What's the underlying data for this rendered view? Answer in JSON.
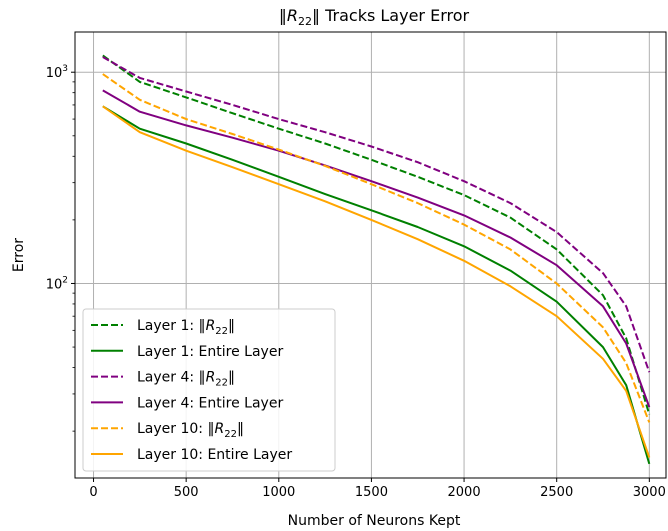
{
  "chart_data": {
    "type": "line",
    "title": "‖R₂₂‖ Tracks Layer Error",
    "xlabel": "Number of Neurons Kept",
    "ylabel": "Error",
    "xlim": [
      -100,
      3090
    ],
    "ylim": [
      12,
      1550
    ],
    "yscale": "log",
    "grid": true,
    "legend_placement": "lower-left",
    "x_ticks": [
      0,
      500,
      1000,
      1500,
      2000,
      2500,
      3000
    ],
    "y_ticks": [
      {
        "value": 100,
        "base": "10",
        "exp": "2"
      },
      {
        "value": 1000,
        "base": "10",
        "exp": "3"
      }
    ],
    "x": [
      50,
      250,
      500,
      750,
      1000,
      1250,
      1500,
      1750,
      2000,
      2250,
      2500,
      2750,
      2875,
      3000
    ],
    "series": [
      {
        "name": "Layer 1:  ‖R₂₂‖",
        "color": "#008000",
        "dash": true,
        "values": [
          1200,
          900,
          760,
          640,
          540,
          460,
          385,
          320,
          262,
          205,
          145,
          88,
          55,
          24
        ]
      },
      {
        "name": "Layer 1:  Entire Layer",
        "color": "#008000",
        "dash": false,
        "values": [
          690,
          540,
          460,
          385,
          320,
          265,
          222,
          185,
          150,
          115,
          82,
          50,
          33,
          14
        ]
      },
      {
        "name": "Layer 4:  ‖R₂₂‖",
        "color": "#800080",
        "dash": true,
        "values": [
          1180,
          940,
          810,
          700,
          600,
          520,
          445,
          375,
          305,
          240,
          175,
          112,
          78,
          38
        ]
      },
      {
        "name": "Layer 4:  Entire Layer",
        "color": "#800080",
        "dash": false,
        "values": [
          820,
          650,
          560,
          490,
          425,
          362,
          305,
          255,
          210,
          165,
          122,
          78,
          52,
          26
        ]
      },
      {
        "name": "Layer 10:  ‖R₂₂‖",
        "color": "#FFA500",
        "dash": true,
        "values": [
          980,
          740,
          600,
          510,
          430,
          360,
          295,
          240,
          190,
          145,
          100,
          62,
          42,
          22
        ]
      },
      {
        "name": "Layer 10:  Entire Layer",
        "color": "#FFA500",
        "dash": false,
        "values": [
          690,
          520,
          425,
          355,
          295,
          245,
          200,
          162,
          128,
          97,
          70,
          44,
          31,
          15
        ]
      }
    ]
  }
}
